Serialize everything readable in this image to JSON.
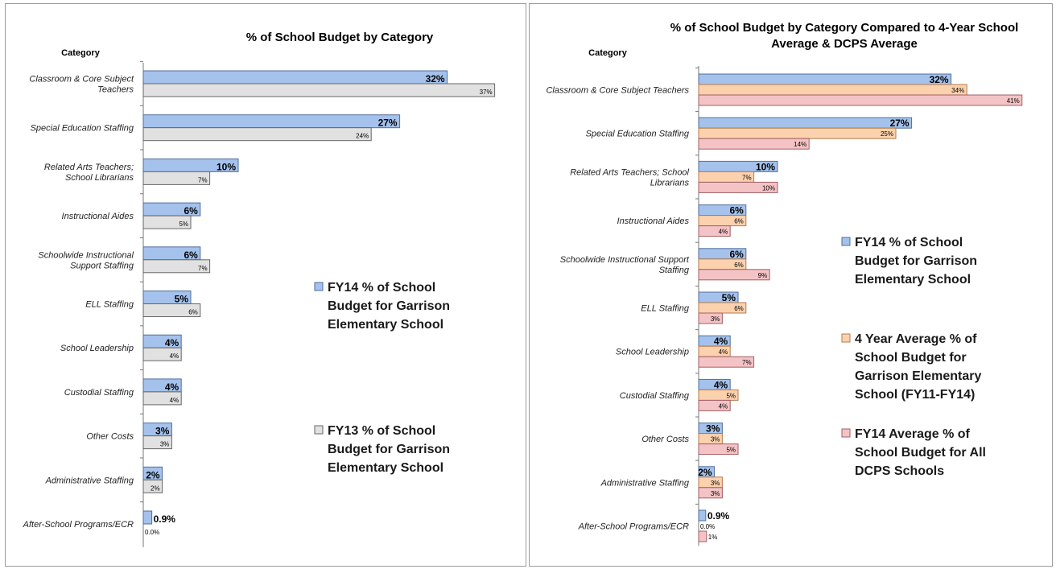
{
  "chart_data": [
    {
      "type": "bar",
      "orientation": "horizontal",
      "title": "% of School Budget by Category",
      "category_header": "Category",
      "categories": [
        "Classroom & Core Subject Teachers",
        "Special Education Staffing",
        "Related Arts Teachers; School Librarians",
        "Instructional Aides",
        "Schoolwide Instructional Support Staffing",
        "ELL Staffing",
        "School Leadership",
        "Custodial Staffing",
        "Other Costs",
        "Administrative Staffing",
        "After-School Programs/ECR"
      ],
      "category_lines": [
        [
          "Classroom & Core Subject",
          "Teachers"
        ],
        [
          "Special Education Staffing"
        ],
        [
          "Related Arts Teachers;",
          "School Librarians"
        ],
        [
          "Instructional Aides"
        ],
        [
          "Schoolwide Instructional",
          "Support Staffing"
        ],
        [
          "ELL Staffing"
        ],
        [
          "School Leadership"
        ],
        [
          "Custodial Staffing"
        ],
        [
          "Other Costs"
        ],
        [
          "Administrative Staffing"
        ],
        [
          "After-School Programs/ECR"
        ]
      ],
      "series": [
        {
          "name": "FY14 % of School Budget for Garrison Elementary School",
          "values": [
            32,
            27,
            10,
            6,
            6,
            5,
            4,
            4,
            3,
            2,
            0.9
          ],
          "labels": [
            "32%",
            "27%",
            "10%",
            "6%",
            "6%",
            "5%",
            "4%",
            "4%",
            "3%",
            "2%",
            "0.9%"
          ],
          "color": "#a4c2ec",
          "stroke": "#4f6f9e"
        },
        {
          "name": "FY13 % of School Budget for Garrison Elementary School",
          "values": [
            37,
            24,
            7,
            5,
            7,
            6,
            4,
            4,
            3,
            2,
            0.0
          ],
          "labels": [
            "37%",
            "24%",
            "7%",
            "5%",
            "7%",
            "6%",
            "4%",
            "4%",
            "3%",
            "2%",
            "0.0%"
          ],
          "color": "#e1e1e1",
          "stroke": "#666666"
        }
      ],
      "legend": {
        "position": "right",
        "entries": [
          [
            "FY14 % of School",
            "Budget for Garrison",
            "Elementary School"
          ],
          [
            "FY13 % of School",
            "Budget for Garrison",
            "Elementary School"
          ]
        ]
      }
    },
    {
      "type": "bar",
      "orientation": "horizontal",
      "title": "% of School Budget by Category Compared to 4-Year School Average & DCPS Average",
      "title_lines": [
        "% of School Budget by Category Compared to 4-Year School",
        "Average & DCPS Average"
      ],
      "category_header": "Category",
      "categories": [
        "Classroom & Core Subject Teachers",
        "Special Education Staffing",
        "Related Arts Teachers; School Librarians",
        "Instructional Aides",
        "Schoolwide Instructional Support Staffing",
        "ELL Staffing",
        "School Leadership",
        "Custodial Staffing",
        "Other Costs",
        "Administrative Staffing",
        "After-School Programs/ECR"
      ],
      "category_lines": [
        [
          "Classroom & Core Subject Teachers"
        ],
        [
          "Special Education Staffing"
        ],
        [
          "Related Arts Teachers; School",
          "Librarians"
        ],
        [
          "Instructional Aides"
        ],
        [
          "Schoolwide Instructional Support",
          "Staffing"
        ],
        [
          "ELL Staffing"
        ],
        [
          "School Leadership"
        ],
        [
          "Custodial Staffing"
        ],
        [
          "Other Costs"
        ],
        [
          "Administrative Staffing"
        ],
        [
          "After-School Programs/ECR"
        ]
      ],
      "series": [
        {
          "name": "FY14 % of School Budget for Garrison Elementary School",
          "values": [
            32,
            27,
            10,
            6,
            6,
            5,
            4,
            4,
            3,
            2,
            0.9
          ],
          "labels": [
            "32%",
            "27%",
            "10%",
            "6%",
            "6%",
            "5%",
            "4%",
            "4%",
            "3%",
            "2%",
            "0.9%"
          ],
          "color": "#a4c2ec",
          "stroke": "#4f6f9e"
        },
        {
          "name": "4 Year Average % of School Budget for Garrison Elementary School (FY11-FY14)",
          "values": [
            34,
            25,
            7,
            6,
            6,
            6,
            4,
            5,
            3,
            3,
            0.0
          ],
          "labels": [
            "34%",
            "25%",
            "7%",
            "6%",
            "6%",
            "6%",
            "4%",
            "5%",
            "3%",
            "3%",
            "0.0%"
          ],
          "color": "#fcd1ae",
          "stroke": "#b57c4e"
        },
        {
          "name": "FY14 Average % of School Budget for All DCPS Schools",
          "values": [
            41,
            14,
            10,
            4,
            9,
            3,
            7,
            4,
            5,
            3,
            1
          ],
          "labels": [
            "41%",
            "14%",
            "10%",
            "4%",
            "9%",
            "3%",
            "7%",
            "4%",
            "5%",
            "3%",
            "1%"
          ],
          "color": "#f4c3c6",
          "stroke": "#a06065"
        }
      ],
      "legend": {
        "position": "right",
        "entries": [
          [
            "FY14 % of School",
            "Budget for Garrison",
            "Elementary School"
          ],
          [
            "4 Year Average % of",
            "School Budget for",
            "Garrison Elementary",
            "School (FY11-FY14)"
          ],
          [
            "FY14 Average % of",
            "School Budget for All",
            "DCPS Schools"
          ]
        ]
      }
    }
  ]
}
